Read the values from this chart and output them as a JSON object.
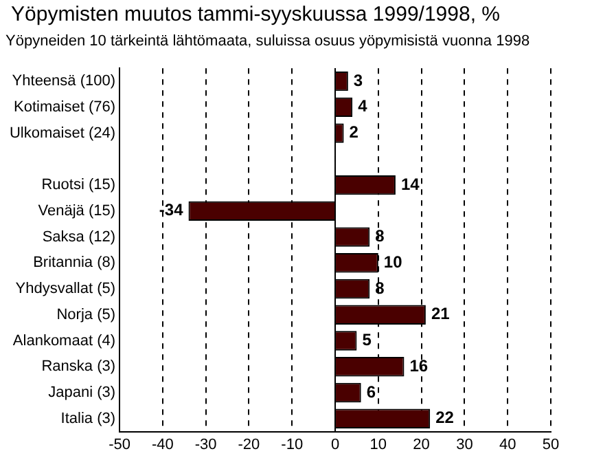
{
  "chart_data": {
    "type": "bar",
    "orientation": "horizontal",
    "title": "Yöpymisten muutos tammi-syyskuussa 1999/1998, %",
    "subtitle": "Yöpyneiden 10 tärkeintä lähtömaata, suluissa osuus yöpymisistä vuonna 1998",
    "categories": [
      "Yhteensä (100)",
      "Kotimaiset (76)",
      "Ulkomaiset (24)",
      null,
      "Ruotsi (15)",
      "Venäjä (15)",
      "Saksa (12)",
      "Britannia (8)",
      "Yhdysvallat (5)",
      "Norja (5)",
      "Alankomaat (4)",
      "Ranska (3)",
      "Japani (3)",
      "Italia (3)"
    ],
    "values": [
      3,
      4,
      2,
      null,
      14,
      -34,
      8,
      10,
      8,
      21,
      5,
      16,
      6,
      22
    ],
    "color": "#4a0000",
    "xlim": [
      -50,
      50
    ],
    "xticks": [
      -50,
      -40,
      -30,
      -20,
      -10,
      0,
      10,
      20,
      30,
      40,
      50
    ],
    "grid": "x",
    "data_labels": true
  }
}
